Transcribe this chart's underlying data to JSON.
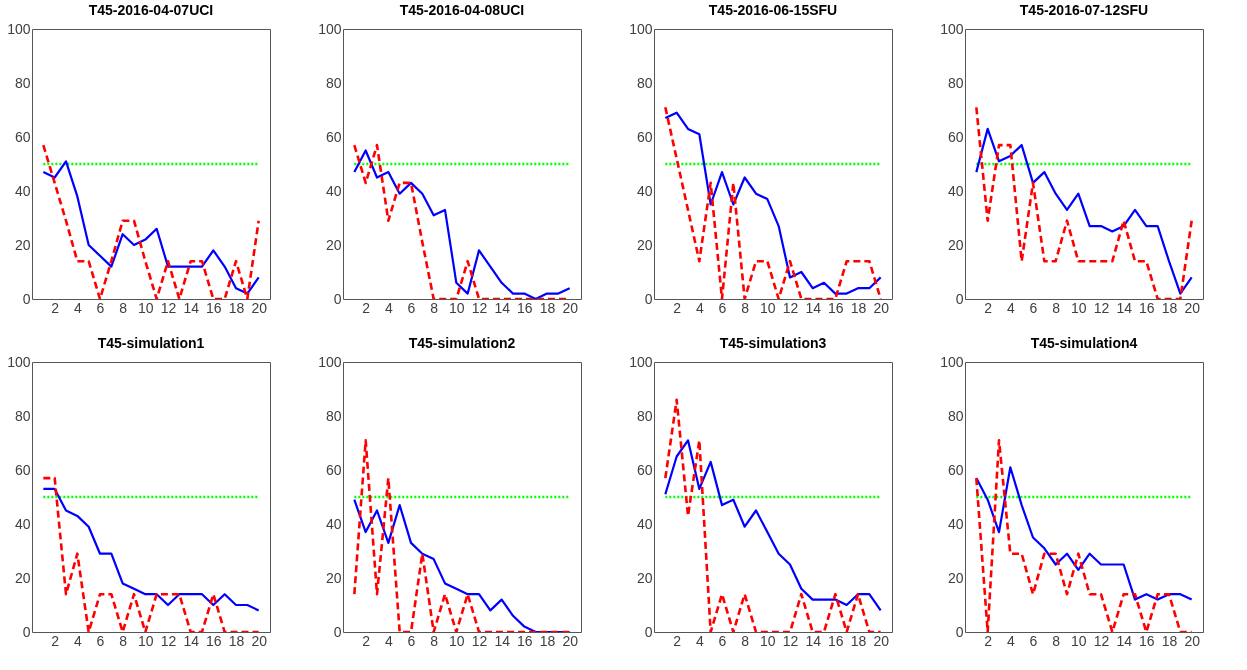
{
  "chart_data": [
    {
      "type": "line",
      "title": "T45-2016-04-07UCI",
      "x": [
        1,
        2,
        3,
        4,
        5,
        6,
        7,
        8,
        9,
        10,
        11,
        12,
        13,
        14,
        15,
        16,
        17,
        18,
        19,
        20
      ],
      "xlim": [
        0,
        21
      ],
      "xticks": [
        2,
        4,
        6,
        8,
        10,
        12,
        14,
        16,
        18,
        20
      ],
      "ylim": [
        0,
        100
      ],
      "yticks": [
        0,
        20,
        40,
        60,
        80,
        100
      ],
      "series": [
        {
          "color": "#00ff00",
          "line_style": "dotted",
          "values": [
            50,
            50,
            50,
            50,
            50,
            50,
            50,
            50,
            50,
            50,
            50,
            50,
            50,
            50,
            50,
            50,
            50,
            50,
            50,
            50
          ]
        },
        {
          "color": "#ff0000",
          "line_style": "dashed",
          "values": [
            57,
            43,
            29,
            14,
            14,
            0,
            14,
            29,
            29,
            14,
            0,
            14,
            0,
            14,
            14,
            0,
            0,
            14,
            0,
            29
          ]
        },
        {
          "color": "#0000ff",
          "line_style": "solid",
          "values": [
            47,
            45,
            51,
            38,
            20,
            16,
            12,
            24,
            20,
            22,
            26,
            12,
            12,
            12,
            12,
            18,
            12,
            4,
            2,
            8
          ]
        }
      ]
    },
    {
      "type": "line",
      "title": "T45-2016-04-08UCI",
      "x": [
        1,
        2,
        3,
        4,
        5,
        6,
        7,
        8,
        9,
        10,
        11,
        12,
        13,
        14,
        15,
        16,
        17,
        18,
        19,
        20
      ],
      "xlim": [
        0,
        21
      ],
      "xticks": [
        2,
        4,
        6,
        8,
        10,
        12,
        14,
        16,
        18,
        20
      ],
      "ylim": [
        0,
        100
      ],
      "yticks": [
        0,
        20,
        40,
        60,
        80,
        100
      ],
      "series": [
        {
          "color": "#00ff00",
          "line_style": "dotted",
          "values": [
            50,
            50,
            50,
            50,
            50,
            50,
            50,
            50,
            50,
            50,
            50,
            50,
            50,
            50,
            50,
            50,
            50,
            50,
            50,
            50
          ]
        },
        {
          "color": "#ff0000",
          "line_style": "dashed",
          "values": [
            57,
            43,
            57,
            29,
            43,
            43,
            21,
            0,
            0,
            0,
            14,
            0,
            0,
            0,
            0,
            0,
            0,
            0,
            0,
            0
          ]
        },
        {
          "color": "#0000ff",
          "line_style": "solid",
          "values": [
            47,
            55,
            45,
            47,
            39,
            43,
            39,
            31,
            33,
            6,
            2,
            18,
            12,
            6,
            2,
            2,
            0,
            2,
            2,
            4
          ]
        }
      ]
    },
    {
      "type": "line",
      "title": "T45-2016-06-15SFU",
      "x": [
        1,
        2,
        3,
        4,
        5,
        6,
        7,
        8,
        9,
        10,
        11,
        12,
        13,
        14,
        15,
        16,
        17,
        18,
        19,
        20
      ],
      "xlim": [
        0,
        21
      ],
      "xticks": [
        2,
        4,
        6,
        8,
        10,
        12,
        14,
        16,
        18,
        20
      ],
      "ylim": [
        0,
        100
      ],
      "yticks": [
        0,
        20,
        40,
        60,
        80,
        100
      ],
      "series": [
        {
          "color": "#00ff00",
          "line_style": "dotted",
          "values": [
            50,
            50,
            50,
            50,
            50,
            50,
            50,
            50,
            50,
            50,
            50,
            50,
            50,
            50,
            50,
            50,
            50,
            50,
            50,
            50
          ]
        },
        {
          "color": "#ff0000",
          "line_style": "dashed",
          "values": [
            71,
            52,
            33,
            14,
            43,
            0,
            43,
            0,
            14,
            14,
            0,
            14,
            0,
            0,
            0,
            0,
            14,
            14,
            14,
            0
          ]
        },
        {
          "color": "#0000ff",
          "line_style": "solid",
          "values": [
            67,
            69,
            63,
            61,
            35,
            47,
            35,
            45,
            39,
            37,
            27,
            8,
            10,
            4,
            6,
            2,
            2,
            4,
            4,
            8
          ]
        }
      ]
    },
    {
      "type": "line",
      "title": "T45-2016-07-12SFU",
      "x": [
        1,
        2,
        3,
        4,
        5,
        6,
        7,
        8,
        9,
        10,
        11,
        12,
        13,
        14,
        15,
        16,
        17,
        18,
        19,
        20
      ],
      "xlim": [
        0,
        21
      ],
      "xticks": [
        2,
        4,
        6,
        8,
        10,
        12,
        14,
        16,
        18,
        20
      ],
      "ylim": [
        0,
        100
      ],
      "yticks": [
        0,
        20,
        40,
        60,
        80,
        100
      ],
      "series": [
        {
          "color": "#00ff00",
          "line_style": "dotted",
          "values": [
            50,
            50,
            50,
            50,
            50,
            50,
            50,
            50,
            50,
            50,
            50,
            50,
            50,
            50,
            50,
            50,
            50,
            50,
            50,
            50
          ]
        },
        {
          "color": "#ff0000",
          "line_style": "dashed",
          "values": [
            71,
            29,
            57,
            57,
            14,
            43,
            14,
            14,
            29,
            14,
            14,
            14,
            14,
            29,
            14,
            14,
            0,
            0,
            0,
            29
          ]
        },
        {
          "color": "#0000ff",
          "line_style": "solid",
          "values": [
            47,
            63,
            51,
            53,
            57,
            43,
            47,
            39,
            33,
            39,
            27,
            27,
            25,
            27,
            33,
            27,
            27,
            14,
            2,
            8
          ]
        }
      ]
    },
    {
      "type": "line",
      "title": "T45-simulation1",
      "x": [
        1,
        2,
        3,
        4,
        5,
        6,
        7,
        8,
        9,
        10,
        11,
        12,
        13,
        14,
        15,
        16,
        17,
        18,
        19,
        20
      ],
      "xlim": [
        0,
        21
      ],
      "xticks": [
        2,
        4,
        6,
        8,
        10,
        12,
        14,
        16,
        18,
        20
      ],
      "ylim": [
        0,
        100
      ],
      "yticks": [
        0,
        20,
        40,
        60,
        80,
        100
      ],
      "series": [
        {
          "color": "#00ff00",
          "line_style": "dotted",
          "values": [
            50,
            50,
            50,
            50,
            50,
            50,
            50,
            50,
            50,
            50,
            50,
            50,
            50,
            50,
            50,
            50,
            50,
            50,
            50,
            50
          ]
        },
        {
          "color": "#ff0000",
          "line_style": "dashed",
          "values": [
            57,
            57,
            14,
            29,
            0,
            14,
            14,
            0,
            14,
            0,
            14,
            14,
            14,
            0,
            0,
            14,
            0,
            0,
            0,
            0
          ]
        },
        {
          "color": "#0000ff",
          "line_style": "solid",
          "values": [
            53,
            53,
            45,
            43,
            39,
            29,
            29,
            18,
            16,
            14,
            14,
            10,
            14,
            14,
            14,
            10,
            14,
            10,
            10,
            8
          ]
        }
      ]
    },
    {
      "type": "line",
      "title": "T45-simulation2",
      "x": [
        1,
        2,
        3,
        4,
        5,
        6,
        7,
        8,
        9,
        10,
        11,
        12,
        13,
        14,
        15,
        16,
        17,
        18,
        19,
        20
      ],
      "xlim": [
        0,
        21
      ],
      "xticks": [
        2,
        4,
        6,
        8,
        10,
        12,
        14,
        16,
        18,
        20
      ],
      "ylim": [
        0,
        100
      ],
      "yticks": [
        0,
        20,
        40,
        60,
        80,
        100
      ],
      "series": [
        {
          "color": "#00ff00",
          "line_style": "dotted",
          "values": [
            50,
            50,
            50,
            50,
            50,
            50,
            50,
            50,
            50,
            50,
            50,
            50,
            50,
            50,
            50,
            50,
            50,
            50,
            50,
            50
          ]
        },
        {
          "color": "#ff0000",
          "line_style": "dashed",
          "values": [
            14,
            71,
            14,
            57,
            0,
            0,
            29,
            0,
            14,
            0,
            14,
            0,
            0,
            0,
            0,
            0,
            0,
            0,
            0,
            0
          ]
        },
        {
          "color": "#0000ff",
          "line_style": "solid",
          "values": [
            49,
            37,
            45,
            33,
            47,
            33,
            29,
            27,
            18,
            16,
            14,
            14,
            8,
            12,
            6,
            2,
            0,
            0,
            0,
            0
          ]
        }
      ]
    },
    {
      "type": "line",
      "title": "T45-simulation3",
      "x": [
        1,
        2,
        3,
        4,
        5,
        6,
        7,
        8,
        9,
        10,
        11,
        12,
        13,
        14,
        15,
        16,
        17,
        18,
        19,
        20
      ],
      "xlim": [
        0,
        21
      ],
      "xticks": [
        2,
        4,
        6,
        8,
        10,
        12,
        14,
        16,
        18,
        20
      ],
      "ylim": [
        0,
        100
      ],
      "yticks": [
        0,
        20,
        40,
        60,
        80,
        100
      ],
      "series": [
        {
          "color": "#00ff00",
          "line_style": "dotted",
          "values": [
            50,
            50,
            50,
            50,
            50,
            50,
            50,
            50,
            50,
            50,
            50,
            50,
            50,
            50,
            50,
            50,
            50,
            50,
            50,
            50
          ]
        },
        {
          "color": "#ff0000",
          "line_style": "dashed",
          "values": [
            57,
            86,
            43,
            71,
            0,
            14,
            0,
            14,
            0,
            0,
            0,
            0,
            14,
            0,
            0,
            14,
            0,
            14,
            0,
            0
          ]
        },
        {
          "color": "#0000ff",
          "line_style": "solid",
          "values": [
            51,
            65,
            71,
            53,
            63,
            47,
            49,
            39,
            45,
            37,
            29,
            25,
            16,
            12,
            12,
            12,
            10,
            14,
            14,
            8
          ]
        }
      ]
    },
    {
      "type": "line",
      "title": "T45-simulation4",
      "x": [
        1,
        2,
        3,
        4,
        5,
        6,
        7,
        8,
        9,
        10,
        11,
        12,
        13,
        14,
        15,
        16,
        17,
        18,
        19,
        20
      ],
      "xlim": [
        0,
        21
      ],
      "xticks": [
        2,
        4,
        6,
        8,
        10,
        12,
        14,
        16,
        18,
        20
      ],
      "ylim": [
        0,
        100
      ],
      "yticks": [
        0,
        20,
        40,
        60,
        80,
        100
      ],
      "series": [
        {
          "color": "#00ff00",
          "line_style": "dotted",
          "values": [
            50,
            50,
            50,
            50,
            50,
            50,
            50,
            50,
            50,
            50,
            50,
            50,
            50,
            50,
            50,
            50,
            50,
            50,
            50,
            50
          ]
        },
        {
          "color": "#ff0000",
          "line_style": "dashed",
          "values": [
            57,
            0,
            71,
            29,
            29,
            14,
            29,
            29,
            14,
            29,
            14,
            14,
            0,
            14,
            14,
            0,
            14,
            14,
            0,
            0
          ]
        },
        {
          "color": "#0000ff",
          "line_style": "solid",
          "values": [
            57,
            49,
            37,
            61,
            47,
            35,
            31,
            25,
            29,
            23,
            29,
            25,
            25,
            25,
            12,
            14,
            12,
            14,
            14,
            12
          ]
        }
      ]
    }
  ]
}
